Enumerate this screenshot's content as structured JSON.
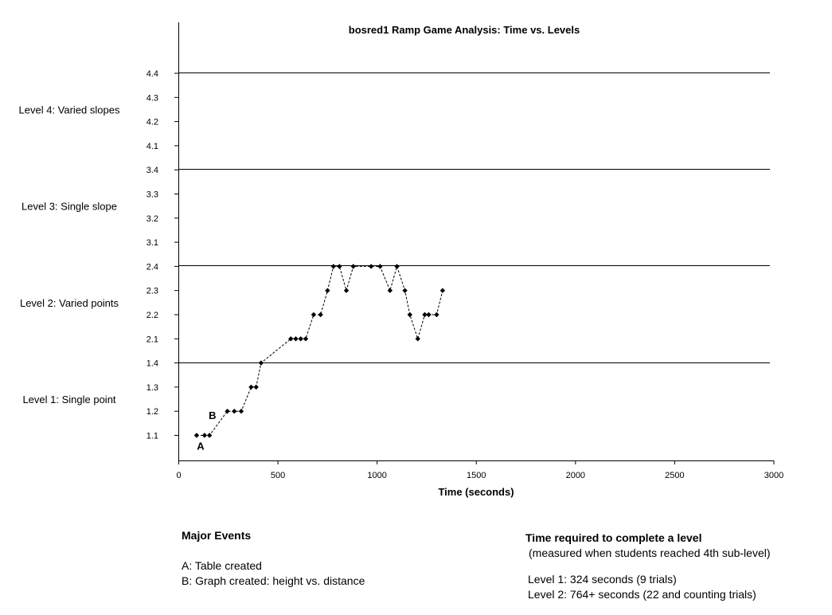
{
  "chart_data": {
    "type": "scatter",
    "title": "bosred1 Ramp Game Analysis: Time vs. Levels",
    "xlabel": "Time (seconds)",
    "ylabel": "",
    "xlim": [
      0,
      3000
    ],
    "x_ticks": [
      0,
      500,
      1000,
      1500,
      2000,
      2500,
      3000
    ],
    "y_ticks": [
      "1.1",
      "1.2",
      "1.3",
      "1.4",
      "2.1",
      "2.2",
      "2.3",
      "2.4",
      "3.1",
      "3.2",
      "3.3",
      "3.4",
      "4.1",
      "4.2",
      "4.3",
      "4.4"
    ],
    "level_labels": [
      "Level 1: Single point",
      "Level 2: Varied points",
      "Level 3: Single slope",
      "Level 4: Varied slopes"
    ],
    "level_boundaries": [
      "1.4",
      "2.4",
      "3.4",
      "4.4"
    ],
    "grid": false,
    "legend": "none",
    "series": [
      {
        "x": [
          90,
          130,
          155,
          245,
          280,
          315,
          365,
          390,
          415,
          565,
          590,
          615,
          640,
          680,
          715,
          750,
          780,
          810,
          845,
          880,
          970,
          1015,
          1065,
          1100,
          1140,
          1165,
          1205,
          1240,
          1260,
          1300,
          1330
        ],
        "y": [
          "1.1",
          "1.1",
          "1.1",
          "1.2",
          "1.2",
          "1.2",
          "1.3",
          "1.3",
          "1.4",
          "2.1",
          "2.1",
          "2.1",
          "2.1",
          "2.2",
          "2.2",
          "2.3",
          "2.4",
          "2.4",
          "2.3",
          "2.4",
          "2.4",
          "2.4",
          "2.3",
          "2.4",
          "2.3",
          "2.2",
          "2.1",
          "2.2",
          "2.2",
          "2.2",
          "2.3"
        ]
      }
    ],
    "annotations": [
      {
        "text": "A",
        "x": 110,
        "y": "1.1"
      },
      {
        "text": "B",
        "x": 170,
        "y": "1.2"
      }
    ],
    "colors": {
      "marker": "#000000",
      "axis": "#000000"
    }
  },
  "events": {
    "title": "Major Events",
    "items": [
      "A: Table created",
      "B: Graph created: height vs. distance"
    ]
  },
  "time_required": {
    "title": "Time required to complete a level",
    "subtitle": "(measured when students reached 4th sub-level)",
    "items": [
      "Level 1: 324 seconds (9 trials)",
      "Level 2: 764+ seconds (22 and counting trials)"
    ]
  }
}
